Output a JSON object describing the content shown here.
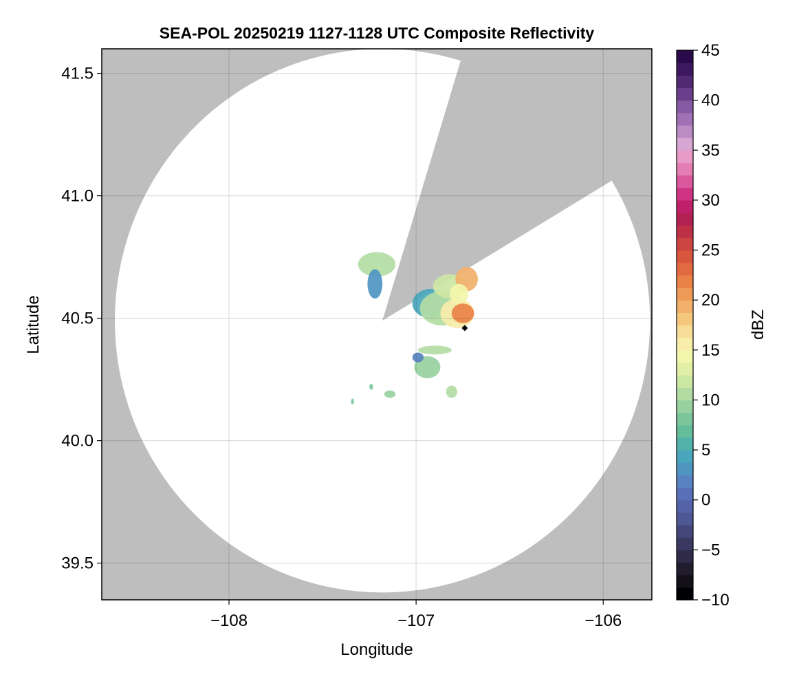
{
  "chart_data": {
    "type": "heatmap",
    "title": "SEA-POL 20250219 1127-1128 UTC Composite Reflectivity",
    "xlabel": "Longitude",
    "ylabel": "Latitude",
    "xlim": [
      -108.68,
      -105.74
    ],
    "ylim": [
      39.35,
      41.6
    ],
    "x_ticks": [
      -108,
      -107,
      -106
    ],
    "x_tick_labels": [
      "−108",
      "−107",
      "−106"
    ],
    "y_ticks": [
      39.5,
      40.0,
      40.5,
      41.0,
      41.5
    ],
    "y_tick_labels": [
      "39.5",
      "40.0",
      "40.5",
      "41.0",
      "41.5"
    ],
    "grid": true,
    "no_data_color": "#bebebe",
    "radar": {
      "center_lon": -107.18,
      "center_lat": 40.49,
      "range_lon": 1.43,
      "range_lat": 1.11,
      "blocked_sectors_deg_from_north": [
        [
          17,
          59
        ]
      ]
    },
    "site_marker": {
      "lon": -106.74,
      "lat": 40.46
    },
    "echoes": [
      {
        "lon": -106.92,
        "lat": 40.56,
        "rlon": 0.1,
        "rlat": 0.06,
        "dbz": 4
      },
      {
        "lon": -106.86,
        "lat": 40.54,
        "rlon": 0.12,
        "rlat": 0.07,
        "dbz": 10
      },
      {
        "lon": -106.78,
        "lat": 40.52,
        "rlon": 0.09,
        "rlat": 0.06,
        "dbz": 15
      },
      {
        "lon": -106.75,
        "lat": 40.52,
        "rlon": 0.06,
        "rlat": 0.04,
        "dbz": 22
      },
      {
        "lon": -106.82,
        "lat": 40.63,
        "rlon": 0.09,
        "rlat": 0.05,
        "dbz": 12
      },
      {
        "lon": -106.73,
        "lat": 40.66,
        "rlon": 0.06,
        "rlat": 0.05,
        "dbz": 19
      },
      {
        "lon": -106.77,
        "lat": 40.6,
        "rlon": 0.05,
        "rlat": 0.04,
        "dbz": 14
      },
      {
        "lon": -107.21,
        "lat": 40.72,
        "rlon": 0.1,
        "rlat": 0.05,
        "dbz": 11
      },
      {
        "lon": -107.22,
        "lat": 40.64,
        "rlon": 0.04,
        "rlat": 0.06,
        "dbz": 3
      },
      {
        "lon": -106.9,
        "lat": 40.37,
        "rlon": 0.09,
        "rlat": 0.018,
        "dbz": 10
      },
      {
        "lon": -106.94,
        "lat": 40.3,
        "rlon": 0.07,
        "rlat": 0.045,
        "dbz": 9
      },
      {
        "lon": -106.99,
        "lat": 40.34,
        "rlon": 0.03,
        "rlat": 0.02,
        "dbz": 2
      },
      {
        "lon": -106.81,
        "lat": 40.2,
        "rlon": 0.03,
        "rlat": 0.025,
        "dbz": 10
      },
      {
        "lon": -107.14,
        "lat": 40.19,
        "rlon": 0.03,
        "rlat": 0.015,
        "dbz": 9
      },
      {
        "lon": -107.24,
        "lat": 40.22,
        "rlon": 0.01,
        "rlat": 0.012,
        "dbz": 8
      },
      {
        "lon": -107.34,
        "lat": 40.16,
        "rlon": 0.008,
        "rlat": 0.012,
        "dbz": 8
      }
    ],
    "colorbar": {
      "label": "dBZ",
      "min": -10,
      "max": 45,
      "ticks": [
        -10,
        -5,
        0,
        5,
        10,
        15,
        20,
        25,
        30,
        35,
        40,
        45
      ],
      "tick_labels": [
        "−10",
        "−5",
        "0",
        "5",
        "10",
        "15",
        "20",
        "25",
        "30",
        "35",
        "40",
        "45"
      ],
      "colors": [
        "#000004",
        "#141018",
        "#221c2f",
        "#2e2a48",
        "#3a3860",
        "#44477a",
        "#4d5794",
        "#5462a8",
        "#5970b8",
        "#5883c0",
        "#4f95c2",
        "#4aa6bc",
        "#52b3ab",
        "#66bd9c",
        "#7cc69c",
        "#98d19f",
        "#b3dca3",
        "#cce6a4",
        "#e2efa7",
        "#f3f6ad",
        "#f8edab",
        "#f7dd97",
        "#f4c77d",
        "#f1b16a",
        "#ef9a57",
        "#ea8247",
        "#e26a40",
        "#d8553e",
        "#cc4340",
        "#be3046",
        "#b32052",
        "#c0206a",
        "#cf3484",
        "#db579d",
        "#e47db4",
        "#e89bc6",
        "#d8a6d2",
        "#bb8cc4",
        "#a070b4",
        "#865aa3",
        "#6a3f8b",
        "#522a73",
        "#3d185e",
        "#2a0a4b"
      ]
    }
  }
}
